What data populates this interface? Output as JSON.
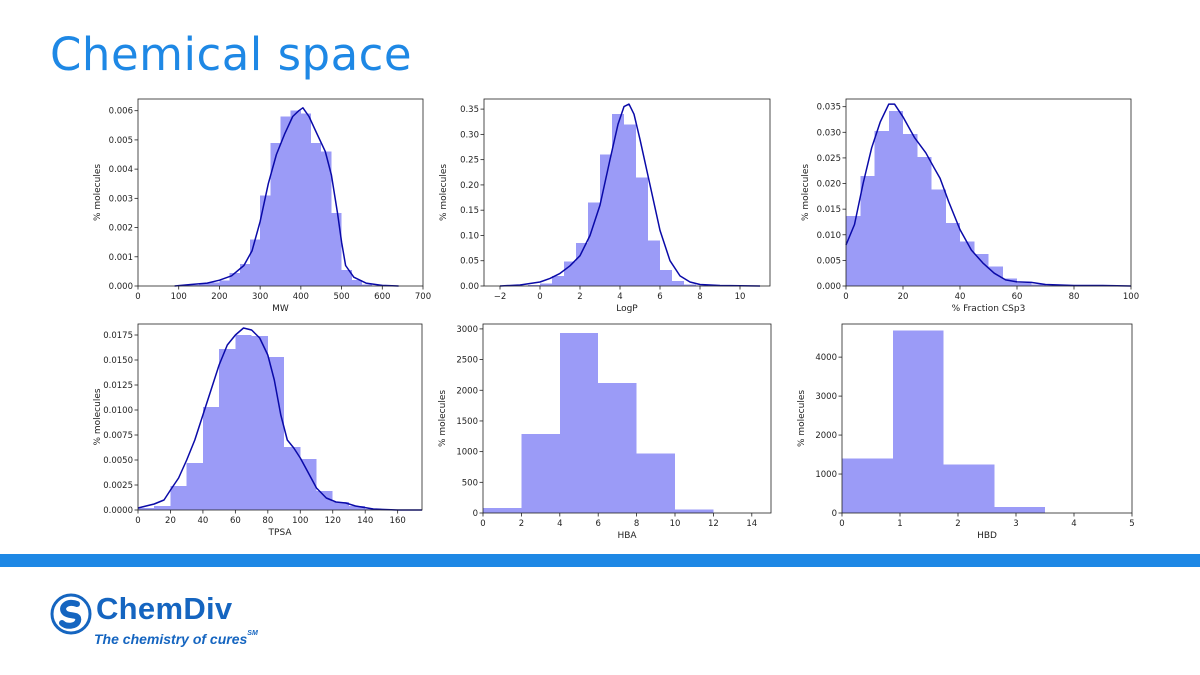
{
  "slide": {
    "title": "Chemical space"
  },
  "brand": {
    "name": "ChemDiv",
    "tagline": "The chemistry of cures",
    "tagline_mark": "SM",
    "color": "#1565c0",
    "band_color": "#1e88e5"
  },
  "chart_data": [
    {
      "id": "mw",
      "type": "histogram",
      "xlabel": "MW",
      "ylabel": "% molecules",
      "xlim": [
        0,
        700
      ],
      "ylim": [
        0,
        0.0064
      ],
      "xticks": [
        0,
        100,
        200,
        300,
        400,
        500,
        600,
        700
      ],
      "yticks": [
        0,
        0.001,
        0.002,
        0.003,
        0.004,
        0.005,
        0.006
      ],
      "ydec": 3,
      "bins": [
        [
          100,
          125,
          2e-05
        ],
        [
          125,
          150,
          3e-05
        ],
        [
          150,
          175,
          8e-05
        ],
        [
          175,
          200,
          0.00012
        ],
        [
          200,
          225,
          0.00018
        ],
        [
          225,
          250,
          0.00045
        ],
        [
          250,
          275,
          0.00075
        ],
        [
          275,
          300,
          0.0016
        ],
        [
          300,
          325,
          0.0031
        ],
        [
          325,
          350,
          0.0049
        ],
        [
          350,
          375,
          0.0058
        ],
        [
          375,
          400,
          0.006
        ],
        [
          400,
          425,
          0.0059
        ],
        [
          425,
          450,
          0.0049
        ],
        [
          450,
          475,
          0.0046
        ],
        [
          475,
          500,
          0.0025
        ],
        [
          500,
          525,
          0.00055
        ],
        [
          525,
          550,
          0.0002
        ],
        [
          550,
          575,
          5e-05
        ],
        [
          575,
          600,
          2e-05
        ]
      ],
      "kde": [
        [
          90,
          0
        ],
        [
          130,
          5e-05
        ],
        [
          170,
          0.0001
        ],
        [
          200,
          0.0002
        ],
        [
          230,
          0.00035
        ],
        [
          260,
          0.0007
        ],
        [
          280,
          0.0012
        ],
        [
          300,
          0.0022
        ],
        [
          320,
          0.0035
        ],
        [
          340,
          0.0045
        ],
        [
          360,
          0.0052
        ],
        [
          380,
          0.0058
        ],
        [
          395,
          0.006
        ],
        [
          405,
          0.0061
        ],
        [
          420,
          0.0058
        ],
        [
          440,
          0.0052
        ],
        [
          460,
          0.0046
        ],
        [
          475,
          0.0038
        ],
        [
          490,
          0.0025
        ],
        [
          500,
          0.0015
        ],
        [
          510,
          0.0007
        ],
        [
          530,
          0.0003
        ],
        [
          560,
          0.0001
        ],
        [
          600,
          2e-05
        ],
        [
          640,
          0
        ]
      ],
      "bins_style": "flush"
    },
    {
      "id": "logp",
      "type": "histogram",
      "xlabel": "LogP",
      "ylabel": "% molecules",
      "xlim": [
        -2.8,
        11.5
      ],
      "ylim": [
        0,
        0.37
      ],
      "xticks": [
        -2,
        0,
        2,
        4,
        6,
        8,
        10
      ],
      "yticks": [
        0,
        0.05,
        0.1,
        0.15,
        0.2,
        0.25,
        0.3,
        0.35
      ],
      "ydec": 2,
      "bins": [
        [
          -0.6,
          0,
          0.002
        ],
        [
          0,
          0.6,
          0.005
        ],
        [
          0.6,
          1.2,
          0.02
        ],
        [
          1.2,
          1.8,
          0.048
        ],
        [
          1.8,
          2.4,
          0.085
        ],
        [
          2.4,
          3.0,
          0.165
        ],
        [
          3.0,
          3.6,
          0.26
        ],
        [
          3.6,
          4.2,
          0.34
        ],
        [
          4.2,
          4.8,
          0.32
        ],
        [
          4.8,
          5.4,
          0.215
        ],
        [
          5.4,
          6.0,
          0.09
        ],
        [
          6.0,
          6.6,
          0.032
        ],
        [
          6.6,
          7.2,
          0.01
        ],
        [
          7.2,
          7.8,
          0.003
        ],
        [
          7.8,
          8.4,
          0.001
        ]
      ],
      "kde": [
        [
          -2,
          0
        ],
        [
          -1,
          0.002
        ],
        [
          0,
          0.008
        ],
        [
          0.5,
          0.015
        ],
        [
          1,
          0.025
        ],
        [
          1.5,
          0.04
        ],
        [
          2,
          0.06
        ],
        [
          2.5,
          0.1
        ],
        [
          3,
          0.16
        ],
        [
          3.5,
          0.25
        ],
        [
          3.9,
          0.32
        ],
        [
          4.2,
          0.355
        ],
        [
          4.45,
          0.36
        ],
        [
          4.7,
          0.34
        ],
        [
          5,
          0.29
        ],
        [
          5.5,
          0.2
        ],
        [
          6,
          0.11
        ],
        [
          6.5,
          0.05
        ],
        [
          7,
          0.02
        ],
        [
          7.5,
          0.008
        ],
        [
          8,
          0.003
        ],
        [
          9,
          0.001
        ],
        [
          11,
          0
        ]
      ],
      "bins_style": "flush"
    },
    {
      "id": "fsp3",
      "type": "histogram",
      "xlabel": "% Fraction CSp3",
      "ylabel": "% molecules",
      "xlim": [
        0,
        100
      ],
      "ylim": [
        0,
        0.0365
      ],
      "xticks": [
        0,
        20,
        40,
        60,
        80,
        100
      ],
      "yticks": [
        0,
        0.005,
        0.01,
        0.015,
        0.02,
        0.025,
        0.03,
        0.035
      ],
      "ydec": 3,
      "bins": [
        [
          0,
          5,
          0.0137
        ],
        [
          5,
          10,
          0.0215
        ],
        [
          10,
          15,
          0.0303
        ],
        [
          15,
          20,
          0.0342
        ],
        [
          20,
          25,
          0.0297
        ],
        [
          25,
          30,
          0.0252
        ],
        [
          30,
          35,
          0.0188
        ],
        [
          35,
          40,
          0.0123
        ],
        [
          40,
          45,
          0.0087
        ],
        [
          45,
          50,
          0.0062
        ],
        [
          50,
          55,
          0.0038
        ],
        [
          55,
          60,
          0.0015
        ],
        [
          60,
          65,
          0.0006
        ],
        [
          65,
          70,
          0.0003
        ],
        [
          70,
          75,
          0.0001
        ]
      ],
      "kde": [
        [
          0,
          0.008
        ],
        [
          3,
          0.012
        ],
        [
          6,
          0.02
        ],
        [
          9,
          0.027
        ],
        [
          12,
          0.032
        ],
        [
          15,
          0.0355
        ],
        [
          17,
          0.0355
        ],
        [
          20,
          0.033
        ],
        [
          24,
          0.029
        ],
        [
          28,
          0.026
        ],
        [
          31,
          0.023
        ],
        [
          33,
          0.021
        ],
        [
          36,
          0.0165
        ],
        [
          40,
          0.011
        ],
        [
          44,
          0.007
        ],
        [
          48,
          0.0045
        ],
        [
          52,
          0.0025
        ],
        [
          56,
          0.0012
        ],
        [
          60,
          0.0008
        ],
        [
          65,
          0.0007
        ],
        [
          70,
          0.0003
        ],
        [
          80,
          0.0001
        ],
        [
          90,
          0.0001
        ],
        [
          100,
          0
        ]
      ],
      "bins_style": "flush"
    },
    {
      "id": "tpsa",
      "type": "histogram",
      "xlabel": "TPSA",
      "ylabel": "% molecules",
      "xlim": [
        0,
        175
      ],
      "ylim": [
        0,
        0.0186
      ],
      "xticks": [
        0,
        20,
        40,
        60,
        80,
        100,
        120,
        140,
        160
      ],
      "yticks": [
        0,
        0.0025,
        0.005,
        0.0075,
        0.01,
        0.0125,
        0.015,
        0.0175
      ],
      "ydec": 4,
      "bins": [
        [
          0,
          10,
          0.0002
        ],
        [
          10,
          20,
          0.0004
        ],
        [
          20,
          30,
          0.0024
        ],
        [
          30,
          40,
          0.0047
        ],
        [
          40,
          50,
          0.0103
        ],
        [
          50,
          60,
          0.0161
        ],
        [
          60,
          70,
          0.0175
        ],
        [
          70,
          80,
          0.0174
        ],
        [
          80,
          90,
          0.0153
        ],
        [
          90,
          100,
          0.0063
        ],
        [
          100,
          110,
          0.0051
        ],
        [
          110,
          120,
          0.0019
        ],
        [
          120,
          130,
          0.0008
        ],
        [
          130,
          140,
          0.0004
        ],
        [
          140,
          150,
          0.0001
        ]
      ],
      "kde": [
        [
          0,
          0.0002
        ],
        [
          10,
          0.0006
        ],
        [
          16,
          0.001
        ],
        [
          20,
          0.002
        ],
        [
          25,
          0.0032
        ],
        [
          30,
          0.005
        ],
        [
          35,
          0.007
        ],
        [
          40,
          0.0095
        ],
        [
          45,
          0.012
        ],
        [
          50,
          0.0145
        ],
        [
          55,
          0.0165
        ],
        [
          60,
          0.0175
        ],
        [
          65,
          0.0182
        ],
        [
          70,
          0.018
        ],
        [
          75,
          0.0172
        ],
        [
          80,
          0.0155
        ],
        [
          84,
          0.013
        ],
        [
          88,
          0.0095
        ],
        [
          92,
          0.007
        ],
        [
          96,
          0.0062
        ],
        [
          100,
          0.0052
        ],
        [
          104,
          0.004
        ],
        [
          110,
          0.0022
        ],
        [
          116,
          0.0012
        ],
        [
          122,
          0.0008
        ],
        [
          128,
          0.0007
        ],
        [
          134,
          0.0004
        ],
        [
          145,
          0.0001
        ],
        [
          160,
          0
        ],
        [
          175,
          0
        ]
      ],
      "bins_style": "flush"
    },
    {
      "id": "hba",
      "type": "histogram",
      "xlabel": "HBA",
      "ylabel": "% molecules",
      "xlim": [
        0,
        15
      ],
      "ylim": [
        0,
        3080
      ],
      "xticks": [
        0,
        2,
        4,
        6,
        8,
        10,
        12,
        14
      ],
      "yticks": [
        0,
        500,
        1000,
        1500,
        2000,
        2500,
        3000
      ],
      "ydec": 0,
      "bins": [
        [
          0,
          2,
          80
        ],
        [
          2,
          4,
          1290
        ],
        [
          4,
          6,
          2930
        ],
        [
          6,
          8,
          2120
        ],
        [
          8,
          10,
          970
        ],
        [
          10,
          12,
          60
        ]
      ],
      "kde": []
    },
    {
      "id": "hbd",
      "type": "histogram",
      "xlabel": "HBD",
      "ylabel": "% molecules",
      "xlim": [
        0,
        5
      ],
      "ylim": [
        0,
        4850
      ],
      "xticks": [
        0,
        1,
        2,
        3,
        4,
        5
      ],
      "yticks": [
        0,
        1000,
        2000,
        3000,
        4000
      ],
      "ydec": 0,
      "bins": [
        [
          0,
          0.875,
          1400
        ],
        [
          0.875,
          1.75,
          4680
        ],
        [
          1.75,
          2.625,
          1240
        ],
        [
          2.625,
          3.5,
          150
        ]
      ],
      "kde": []
    }
  ]
}
